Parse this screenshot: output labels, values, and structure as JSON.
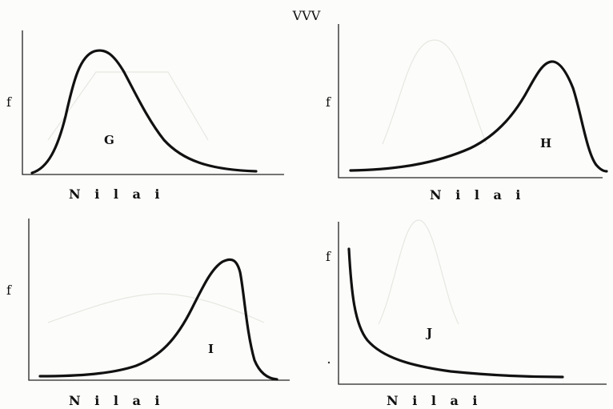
{
  "title": "VVV",
  "panels": [
    {
      "id": "G",
      "y_label": "f",
      "x_label": "N i l a i",
      "curve_label": "G",
      "shape": "positively-skewed"
    },
    {
      "id": "H",
      "y_label": "f",
      "x_label": "N i l a i",
      "curve_label": "H",
      "shape": "negatively-skewed"
    },
    {
      "id": "I",
      "y_label": "f",
      "x_label": "N i l a i",
      "curve_label": "I",
      "shape": "sharply-negatively-skewed"
    },
    {
      "id": "J",
      "y_label": "f",
      "x_label": "N i l a i",
      "curve_label": "J",
      "shape": "J-shaped"
    }
  ],
  "colors": {
    "curve": "#111111",
    "background": "#fcfcfa"
  }
}
